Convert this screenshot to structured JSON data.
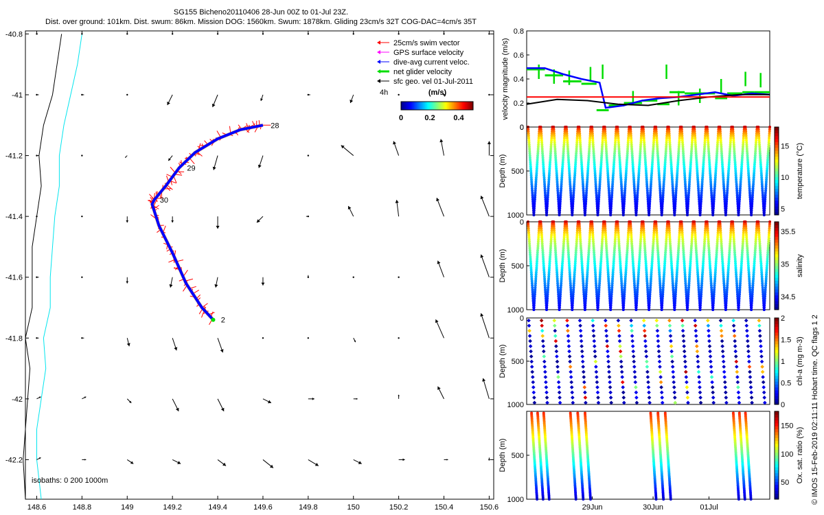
{
  "header": {
    "line1": "SG155 Bicheno20110406 28-Jun 00Z to 01-Jul 23Z.",
    "line2": "Dist. over ground: 101km. Dist. swum: 86km. Mission DOG: 1560km. Swum: 1878km. Gliding 23cm/s 32T COG-DAC=4cm/s 35T"
  },
  "side_note": "© IMOS 15-Feb-2019 02:11:11 Hobart time. QC flags 1  2",
  "colors": {
    "track": "#0000ff",
    "swim": "#ff0000",
    "gps": "#ff00ff",
    "net": "#00dd00",
    "coast": "#000000",
    "isobath": "#00e5ee",
    "surface": "#000000",
    "mean": "#ff0000"
  },
  "chart_data": [
    {
      "type": "map",
      "xlim": [
        148.55,
        150.62
      ],
      "ylim": [
        -42.33,
        -40.79
      ],
      "x_ticks": [
        148.6,
        148.8,
        149,
        149.2,
        149.4,
        149.6,
        149.8,
        150,
        150.2,
        150.4,
        150.6
      ],
      "x_tick_labels": [
        "148.6",
        "148.8",
        "149",
        "149.2",
        "149.4",
        "149.6",
        "149.8",
        "150",
        "150.2",
        "150.4",
        "150.6"
      ],
      "y_ticks": [
        -40.8,
        -41,
        -41.2,
        -41.4,
        -41.6,
        -41.8,
        -42,
        -42.2
      ],
      "y_tick_labels": [
        "-40.8",
        "-41",
        "-41.2",
        "-41.4",
        "-41.6",
        "-41.8",
        "-42",
        "-42.2"
      ],
      "legend": [
        "25cm/s swim vector",
        "GPS surface velocity",
        "dive-avg current veloc.",
        "net glider velocity",
        "sfc geo. vel 01-Jul-2011"
      ],
      "legend_prefix": "4h",
      "colorbar": {
        "label": "(m/s)",
        "ticks": [
          "0",
          "0.2",
          "0.4"
        ],
        "range": [
          0,
          0.5
        ]
      },
      "isobath_note": "isobaths: 0   200   1000m",
      "track": [
        [
          149.6,
          -41.1
        ],
        [
          149.5,
          -41.115
        ],
        [
          149.4,
          -41.145
        ],
        [
          149.3,
          -41.19
        ],
        [
          149.23,
          -41.24
        ],
        [
          149.17,
          -41.3
        ],
        [
          149.12,
          -41.345
        ],
        [
          149.11,
          -41.36
        ],
        [
          149.14,
          -41.43
        ],
        [
          149.2,
          -41.52
        ],
        [
          149.26,
          -41.62
        ],
        [
          149.33,
          -41.7
        ],
        [
          149.38,
          -41.74
        ]
      ],
      "day_labels": [
        {
          "text": "28",
          "lon": 149.61,
          "lat": -41.1
        },
        {
          "text": "29",
          "lon": 149.24,
          "lat": -41.24
        },
        {
          "text": "30",
          "lon": 149.12,
          "lat": -41.345
        },
        {
          "text": "2",
          "lon": 149.39,
          "lat": -41.74
        }
      ],
      "coastline": [
        [
          148.71,
          -40.8
        ],
        [
          148.69,
          -40.9
        ],
        [
          148.67,
          -41.0
        ],
        [
          148.63,
          -41.1
        ],
        [
          148.61,
          -41.2
        ],
        [
          148.62,
          -41.3
        ],
        [
          148.6,
          -41.4
        ],
        [
          148.58,
          -41.5
        ],
        [
          148.58,
          -41.6
        ],
        [
          148.58,
          -41.7
        ],
        [
          148.55,
          -41.8
        ],
        [
          148.57,
          -41.9
        ],
        [
          148.56,
          -42.0
        ],
        [
          148.55,
          -42.1
        ],
        [
          148.54,
          -42.2
        ],
        [
          148.55,
          -42.33
        ]
      ],
      "isobath_200": [
        [
          148.8,
          -40.8
        ],
        [
          148.78,
          -40.9
        ],
        [
          148.75,
          -41.0
        ],
        [
          148.72,
          -41.1
        ],
        [
          148.7,
          -41.2
        ],
        [
          148.7,
          -41.3
        ],
        [
          148.68,
          -41.4
        ],
        [
          148.67,
          -41.5
        ],
        [
          148.66,
          -41.6
        ],
        [
          148.66,
          -41.7
        ],
        [
          148.63,
          -41.8
        ],
        [
          148.64,
          -41.9
        ],
        [
          148.62,
          -42.0
        ],
        [
          148.6,
          -42.1
        ],
        [
          148.6,
          -42.2
        ],
        [
          148.62,
          -42.33
        ]
      ],
      "surface_arrows": [
        {
          "lat": -40.8,
          "u": [
            0.01,
            0,
            0,
            0,
            0,
            0,
            0,
            0,
            0,
            0,
            0
          ],
          "v": [
            0,
            0,
            0,
            0,
            0,
            0,
            0,
            0,
            0,
            0,
            0
          ]
        },
        {
          "lat": -41.0,
          "u": [
            0.02,
            0.02,
            0.0,
            -0.05,
            -0.05,
            -0.02,
            0.02,
            -0.03,
            0.0,
            0.0,
            0.0
          ],
          "v": [
            0,
            0,
            0,
            -0.1,
            -0.12,
            -0.06,
            0.0,
            -0.08,
            0.0,
            0.0,
            0.0
          ]
        },
        {
          "lat": -41.2,
          "u": [
            0.02,
            0.0,
            -0.02,
            -0.04,
            -0.04,
            -0.04,
            0.0,
            -0.12,
            -0.05,
            -0.03,
            0.0
          ],
          "v": [
            0,
            0,
            -0.02,
            -0.05,
            -0.14,
            -0.12,
            0.0,
            0.1,
            0.14,
            0.16,
            0.14
          ]
        },
        {
          "lat": -41.4,
          "u": [
            0.0,
            0.0,
            0.0,
            0.0,
            0.0,
            -0.06,
            -0.02,
            -0.05,
            -0.02,
            -0.07,
            -0.08
          ],
          "v": [
            0,
            0,
            -0.06,
            -0.06,
            -0.12,
            -0.06,
            0.0,
            0.1,
            0.16,
            0.18,
            0.2
          ]
        },
        {
          "lat": -41.6,
          "u": [
            0.02,
            0.0,
            0.0,
            -0.02,
            -0.02,
            0.0,
            0.0,
            0.0,
            0.0,
            -0.06,
            -0.08
          ],
          "v": [
            0,
            0,
            -0.06,
            -0.1,
            -0.1,
            -0.08,
            0.02,
            0.0,
            0.0,
            0.16,
            0.22
          ]
        },
        {
          "lat": -41.8,
          "u": [
            0.02,
            0.02,
            0.02,
            0.04,
            0.05,
            0.0,
            0.0,
            0.02,
            0.0,
            -0.08,
            -0.08
          ],
          "v": [
            0,
            0,
            -0.08,
            -0.12,
            -0.14,
            0.0,
            0.0,
            -0.04,
            0.0,
            0.18,
            0.24
          ]
        },
        {
          "lat": -42.0,
          "u": [
            0.04,
            0.04,
            0.04,
            0.06,
            0.06,
            0.08,
            0.06,
            0.04,
            0.0,
            -0.06,
            -0.06
          ],
          "v": [
            0.02,
            0.02,
            -0.04,
            -0.12,
            -0.12,
            -0.04,
            0.0,
            0.0,
            0.04,
            0.12,
            0.2
          ]
        },
        {
          "lat": -42.2,
          "u": [
            0.04,
            0.04,
            0.06,
            0.08,
            0.08,
            0.1,
            0.1,
            0.08,
            0.06,
            0.04,
            0.0
          ],
          "v": [
            0.02,
            0.0,
            -0.04,
            -0.04,
            -0.06,
            -0.08,
            -0.06,
            -0.04,
            0.0,
            0.0,
            0.02
          ]
        }
      ]
    },
    {
      "type": "line",
      "ylabel": "velocity magnitude (m/s)",
      "ylim": [
        0,
        0.8
      ],
      "y_ticks": [
        "0",
        "0.2",
        "0.4",
        "0.6",
        "0.8"
      ],
      "x_range": [
        0,
        4
      ],
      "series": [
        {
          "color": "#0000ff",
          "x": [
            0,
            0.3,
            0.6,
            0.9,
            1.2,
            1.3,
            1.6,
            1.9,
            2.2,
            2.5,
            2.8,
            3.1,
            3.4,
            3.7,
            4.0
          ],
          "values": [
            0.49,
            0.49,
            0.44,
            0.4,
            0.37,
            0.16,
            0.18,
            0.22,
            0.24,
            0.25,
            0.27,
            0.29,
            0.26,
            0.28,
            0.27
          ]
        },
        {
          "color": "#000000",
          "x": [
            0,
            0.5,
            1.0,
            1.5,
            2.0,
            2.5,
            3.0,
            3.5,
            4.0
          ],
          "values": [
            0.19,
            0.23,
            0.22,
            0.19,
            0.18,
            0.22,
            0.25,
            0.27,
            0.27
          ]
        },
        {
          "color": "#ff0000",
          "x": [
            0,
            4
          ],
          "values": [
            0.25,
            0.25
          ]
        }
      ],
      "net_segments": [
        [
          0.0,
          0.3,
          0.48
        ],
        [
          0.3,
          0.6,
          0.43
        ],
        [
          0.6,
          0.9,
          0.38
        ],
        [
          0.9,
          1.15,
          0.36
        ],
        [
          1.15,
          1.35,
          0.14
        ],
        [
          1.35,
          1.6,
          0.18
        ],
        [
          1.6,
          1.9,
          0.2
        ],
        [
          1.9,
          2.15,
          0.22
        ],
        [
          2.15,
          2.35,
          0.19
        ],
        [
          2.35,
          2.6,
          0.29
        ],
        [
          2.6,
          2.9,
          0.28
        ],
        [
          2.9,
          3.1,
          0.28
        ],
        [
          3.1,
          3.3,
          0.24
        ],
        [
          3.3,
          3.55,
          0.28
        ],
        [
          3.55,
          3.75,
          0.29
        ],
        [
          3.75,
          4.0,
          0.29
        ]
      ],
      "net_spikes": [
        [
          0.2,
          0.52
        ],
        [
          0.45,
          0.48
        ],
        [
          0.7,
          0.47
        ],
        [
          1.05,
          0.5
        ],
        [
          1.25,
          0.52
        ],
        [
          1.75,
          0.3
        ],
        [
          2.3,
          0.52
        ],
        [
          2.5,
          0.3
        ],
        [
          2.85,
          0.32
        ],
        [
          3.2,
          0.4
        ],
        [
          3.6,
          0.46
        ],
        [
          3.85,
          0.45
        ]
      ]
    },
    {
      "type": "scatter",
      "ylabel": "Depth (m)",
      "ylim": [
        1000,
        0
      ],
      "y_ticks": [
        "0",
        "500",
        "1000"
      ],
      "colorbar": {
        "label": "temperature (°C)",
        "ticks": [
          "5",
          "10",
          "15"
        ],
        "min": 4,
        "max": 18
      },
      "dives": 19,
      "surface_value": 17,
      "deep_value": 5,
      "pattern": "vshape"
    },
    {
      "type": "scatter",
      "ylabel": "Depth (m)",
      "ylim": [
        1000,
        0
      ],
      "y_ticks": [
        "0",
        "500",
        "1000"
      ],
      "colorbar": {
        "label": "salinity",
        "ticks": [
          "34.5",
          "35",
          "35.5"
        ],
        "min": 34.3,
        "max": 35.65
      },
      "dives": 19,
      "surface_value": 35.55,
      "deep_value": 34.45,
      "pattern": "vshape"
    },
    {
      "type": "scatter",
      "ylabel": "Depth (m)",
      "ylim": [
        1000,
        0
      ],
      "y_ticks": [
        "0",
        "500",
        "1000"
      ],
      "colorbar": {
        "label": "chl-a (mg m-3)",
        "ticks": [
          "0",
          "0.5",
          "1",
          "1.5",
          "2"
        ],
        "min": 0,
        "max": 2
      },
      "dives": 19,
      "pattern": "sparse"
    },
    {
      "type": "scatter",
      "ylabel": "Depth (m)",
      "ylim": [
        1000,
        0
      ],
      "y_ticks": [
        "500",
        "1000"
      ],
      "colorbar": {
        "label": "Ox. sat. ratio (%)",
        "ticks": [
          "50",
          "100",
          "150"
        ],
        "min": 20,
        "max": 175
      },
      "x_ticks": [
        "29Jun",
        "30Jun",
        "01Jul"
      ],
      "pattern": "oxygen"
    }
  ]
}
